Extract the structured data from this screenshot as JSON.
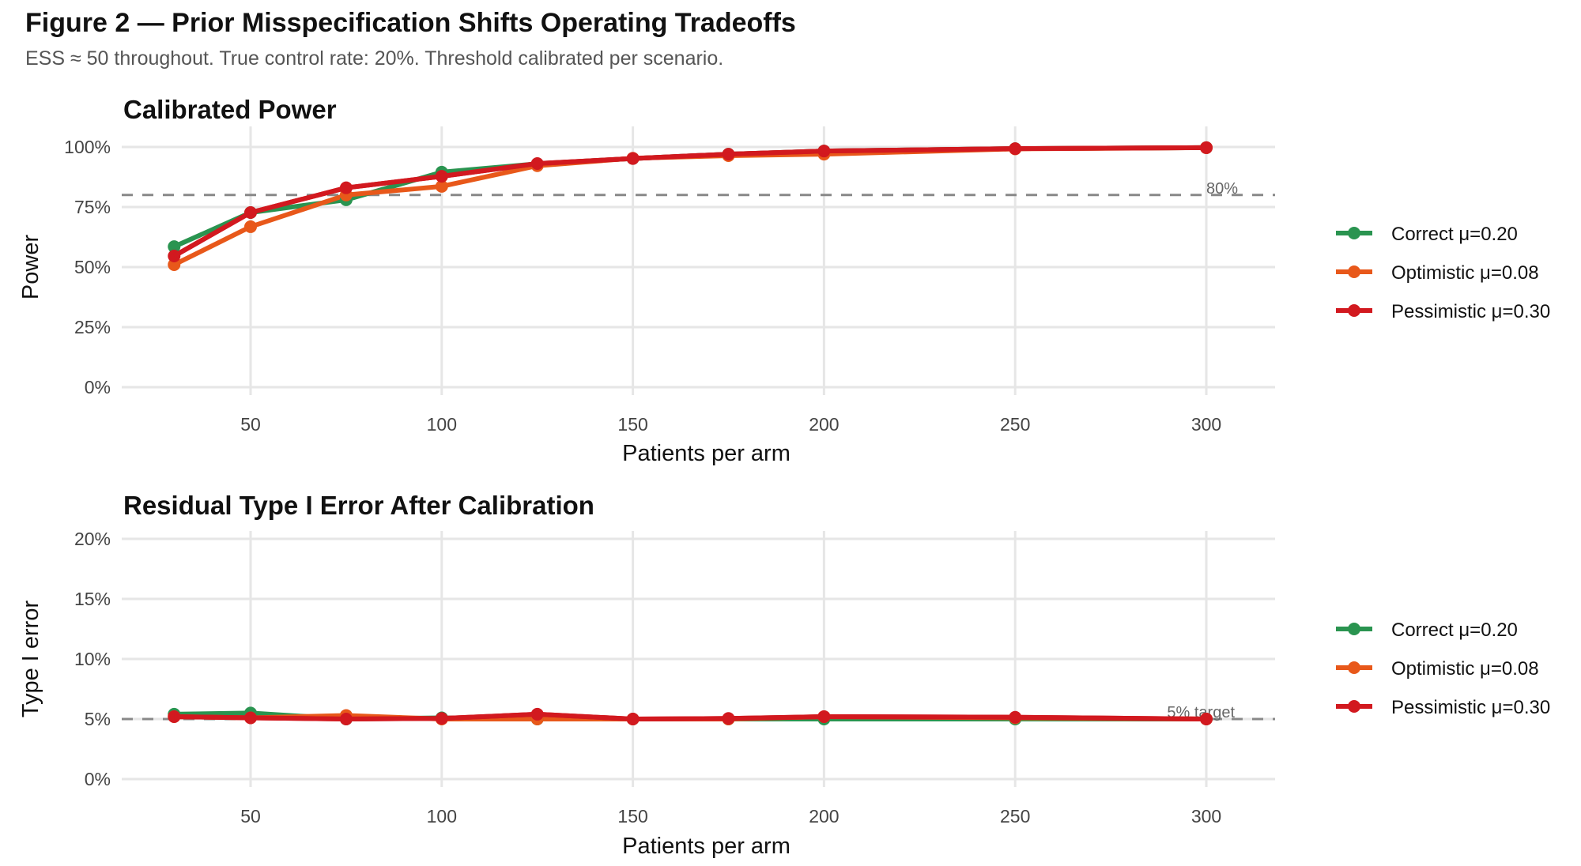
{
  "figure": {
    "title": "Figure 2 — Prior Misspecification Shifts Operating Tradeoffs",
    "subtitle": "ESS ≈ 50 throughout. True control rate: 20%. Threshold calibrated per scenario."
  },
  "chart_data": [
    {
      "type": "line",
      "title": "Calibrated Power",
      "xlabel": "Patients per arm",
      "ylabel": "Power",
      "x": [
        30,
        50,
        75,
        100,
        125,
        150,
        175,
        200,
        250,
        300
      ],
      "xticks": [
        50,
        100,
        150,
        200,
        250,
        300
      ],
      "xlim": [
        15,
        318
      ],
      "ylim": [
        0,
        100
      ],
      "yticks": [
        0,
        25,
        50,
        75,
        100
      ],
      "ytick_labels": [
        "0%",
        "25%",
        "50%",
        "75%",
        "100%"
      ],
      "grid": true,
      "legend_position": "right",
      "reference_line": {
        "y": 80,
        "label": "80%"
      },
      "series": [
        {
          "name": "Correct μ=0.20",
          "color": "#2a9450",
          "values": [
            58.5,
            72.7,
            78.0,
            89.5,
            93.0,
            95.2,
            97.0,
            98.3,
            99.3,
            99.7
          ]
        },
        {
          "name": "Optimistic μ=0.08",
          "color": "#e8581a",
          "values": [
            51.0,
            66.8,
            80.0,
            83.6,
            92.2,
            95.3,
            96.4,
            97.0,
            99.2,
            99.7
          ]
        },
        {
          "name": "Pessimistic μ=0.30",
          "color": "#d2191f",
          "values": [
            54.6,
            72.7,
            83.0,
            87.8,
            93.1,
            95.2,
            97.0,
            98.3,
            99.3,
            99.7
          ]
        }
      ]
    },
    {
      "type": "line",
      "title": "Residual Type I Error After Calibration",
      "xlabel": "Patients per arm",
      "ylabel": "Type I error",
      "x": [
        30,
        50,
        75,
        100,
        125,
        150,
        175,
        200,
        250,
        300
      ],
      "xticks": [
        50,
        100,
        150,
        200,
        250,
        300
      ],
      "xlim": [
        15,
        318
      ],
      "ylim": [
        0,
        20
      ],
      "yticks": [
        0,
        5,
        10,
        15,
        20
      ],
      "ytick_labels": [
        "0%",
        "5%",
        "10%",
        "15%",
        "20%"
      ],
      "grid": true,
      "legend_position": "right",
      "reference_line": {
        "y": 5,
        "label": "5% target"
      },
      "series": [
        {
          "name": "Correct μ=0.20",
          "color": "#2a9450",
          "values": [
            5.4,
            5.5,
            5.0,
            5.1,
            5.0,
            5.0,
            5.0,
            5.0,
            5.0,
            5.0
          ]
        },
        {
          "name": "Optimistic μ=0.08",
          "color": "#e8581a",
          "values": [
            5.2,
            5.1,
            5.3,
            5.0,
            5.0,
            5.0,
            5.0,
            5.2,
            5.1,
            5.0
          ]
        },
        {
          "name": "Pessimistic μ=0.30",
          "color": "#d2191f",
          "values": [
            5.2,
            5.1,
            5.0,
            5.05,
            5.4,
            5.0,
            5.05,
            5.2,
            5.15,
            5.0
          ]
        }
      ]
    }
  ]
}
